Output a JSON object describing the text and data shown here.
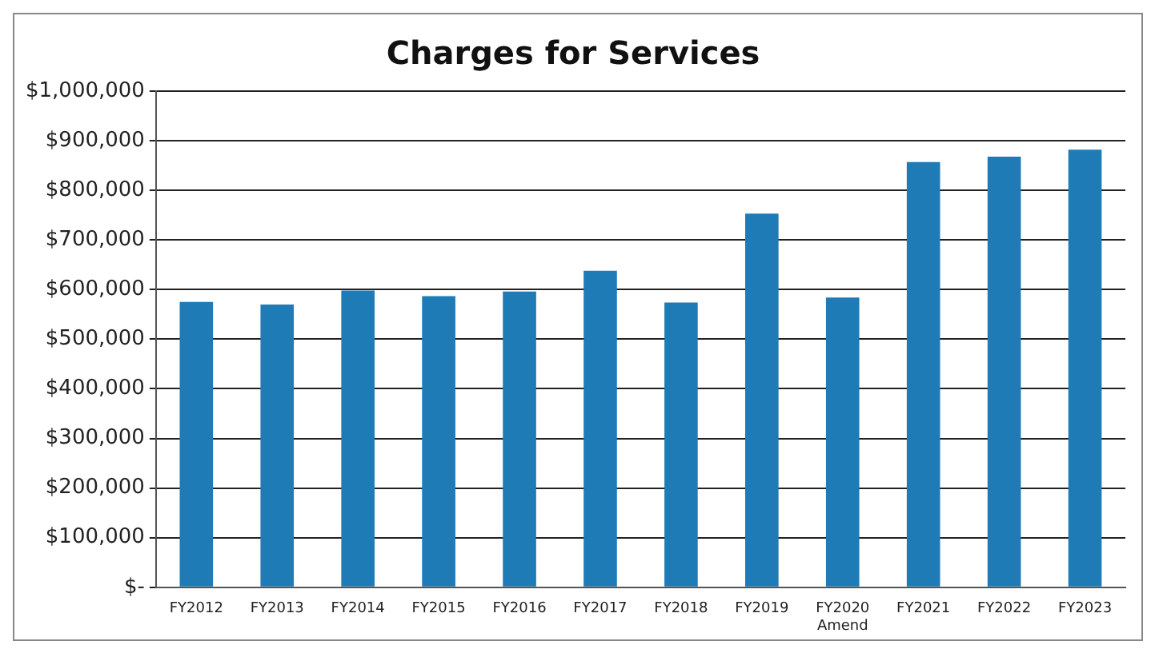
{
  "chart_data": {
    "type": "bar",
    "title": "Charges for Services",
    "categories": [
      "FY2012",
      "FY2013",
      "FY2014",
      "FY2015",
      "FY2016",
      "FY2017",
      "FY2018",
      "FY2019",
      "FY2020\nAmend",
      "FY2021",
      "FY2022",
      "FY2023"
    ],
    "values": [
      575000,
      570000,
      598000,
      587000,
      596000,
      638000,
      574000,
      753000,
      584000,
      857000,
      868000,
      882000
    ],
    "color": "#1f7bb6",
    "ylim": [
      0,
      1000000
    ],
    "yticks": [
      {
        "value": 0,
        "label": "$-"
      },
      {
        "value": 100000,
        "label": "$100,000"
      },
      {
        "value": 200000,
        "label": "$200,000"
      },
      {
        "value": 300000,
        "label": "$300,000"
      },
      {
        "value": 400000,
        "label": "$400,000"
      },
      {
        "value": 500000,
        "label": "$500,000"
      },
      {
        "value": 600000,
        "label": "$600,000"
      },
      {
        "value": 700000,
        "label": "$700,000"
      },
      {
        "value": 800000,
        "label": "$800,000"
      },
      {
        "value": 900000,
        "label": "$900,000"
      },
      {
        "value": 1000000,
        "label": "$1,000,000"
      }
    ],
    "grid": "y"
  }
}
